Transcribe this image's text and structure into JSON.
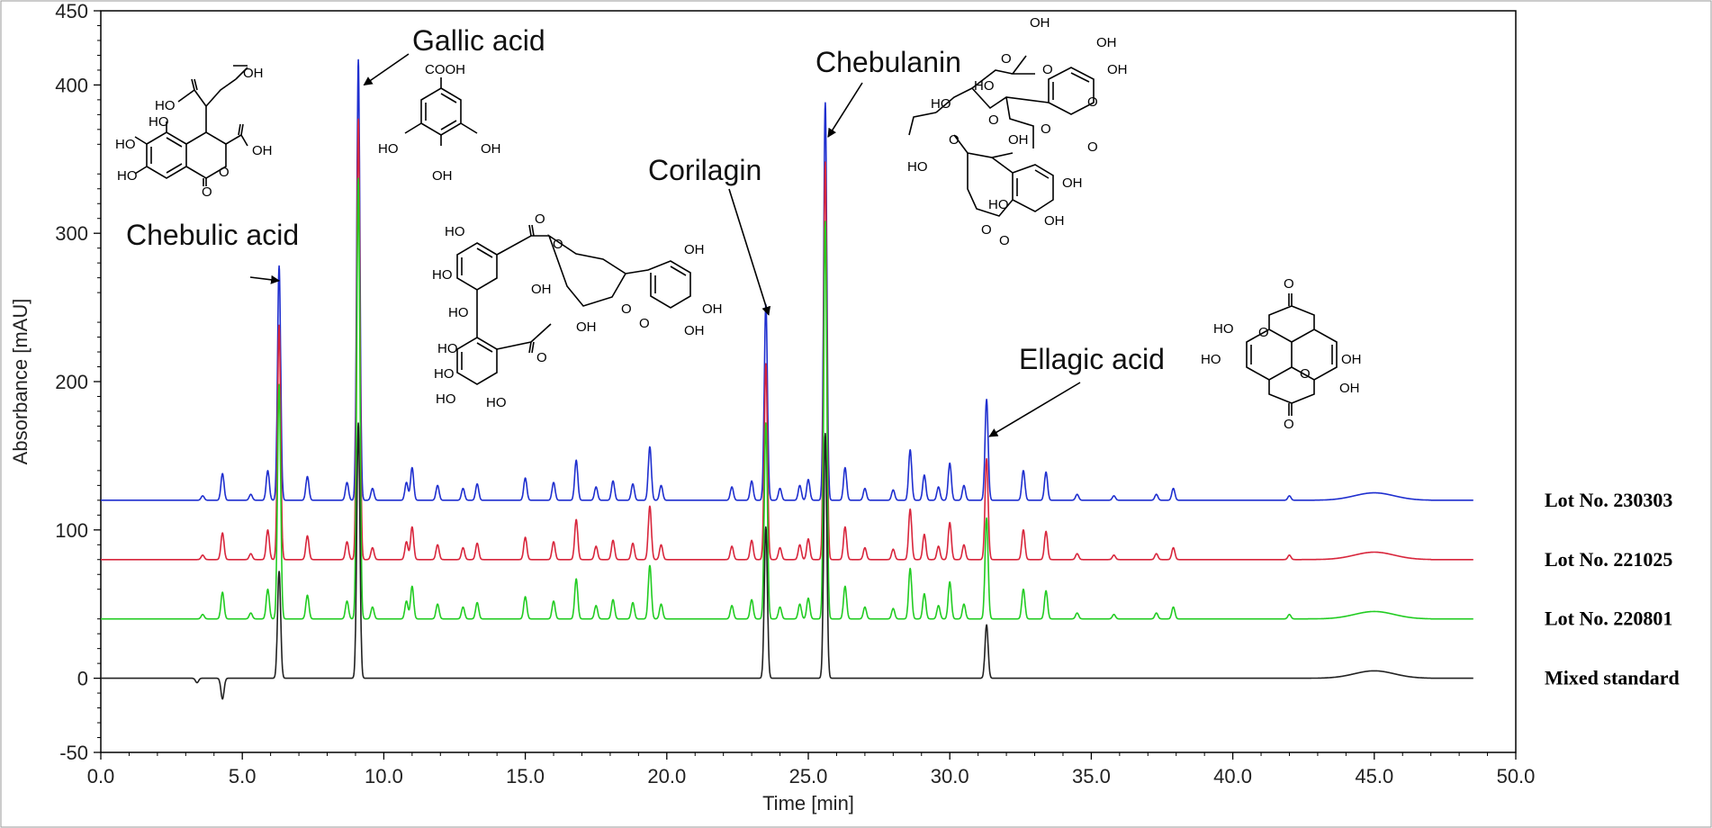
{
  "chart_data": {
    "type": "line",
    "xlabel": "Time [min]",
    "ylabel": "Absorbance [mAU]",
    "xlim": [
      0,
      50
    ],
    "ylim": [
      -50,
      450
    ],
    "x_ticks": [
      "0.0",
      "5.0",
      "10.0",
      "15.0",
      "20.0",
      "25.0",
      "30.0",
      "35.0",
      "40.0",
      "45.0",
      "50.0"
    ],
    "y_ticks": [
      "-50",
      "0",
      "100",
      "200",
      "300",
      "400",
      "450"
    ],
    "grid": false,
    "legend_placement": "right",
    "series": [
      {
        "name": "Lot No. 230303",
        "color": "#1f2fcf",
        "baseline": 120,
        "peaks": [
          [
            3.6,
            3
          ],
          [
            4.3,
            18
          ],
          [
            5.3,
            4
          ],
          [
            5.9,
            20
          ],
          [
            6.3,
            158
          ],
          [
            7.3,
            16
          ],
          [
            8.7,
            12
          ],
          [
            9.1,
            297
          ],
          [
            9.6,
            8
          ],
          [
            10.8,
            12
          ],
          [
            11.0,
            22
          ],
          [
            11.9,
            10
          ],
          [
            12.8,
            8
          ],
          [
            13.3,
            11
          ],
          [
            15.0,
            15
          ],
          [
            16.0,
            12
          ],
          [
            16.8,
            27
          ],
          [
            17.5,
            9
          ],
          [
            18.1,
            13
          ],
          [
            18.8,
            11
          ],
          [
            19.4,
            36
          ],
          [
            19.8,
            10
          ],
          [
            22.3,
            9
          ],
          [
            23.0,
            13
          ],
          [
            23.5,
            132
          ],
          [
            24.0,
            8
          ],
          [
            24.7,
            10
          ],
          [
            25.0,
            14
          ],
          [
            25.6,
            268
          ],
          [
            26.3,
            22
          ],
          [
            27.0,
            8
          ],
          [
            28.0,
            7
          ],
          [
            28.6,
            34
          ],
          [
            29.1,
            17
          ],
          [
            29.6,
            9
          ],
          [
            30.0,
            25
          ],
          [
            30.5,
            10
          ],
          [
            31.3,
            68
          ],
          [
            32.6,
            20
          ],
          [
            33.4,
            19
          ],
          [
            34.5,
            4
          ],
          [
            35.8,
            3
          ],
          [
            37.3,
            4
          ],
          [
            37.9,
            8
          ],
          [
            42.0,
            3
          ],
          [
            45.0,
            5
          ]
        ]
      },
      {
        "name": "Lot No. 221025",
        "color": "#d8263c",
        "baseline": 80,
        "peaks": [
          [
            3.6,
            3
          ],
          [
            4.3,
            18
          ],
          [
            5.3,
            4
          ],
          [
            5.9,
            20
          ],
          [
            6.3,
            158
          ],
          [
            7.3,
            16
          ],
          [
            8.7,
            12
          ],
          [
            9.1,
            297
          ],
          [
            9.6,
            8
          ],
          [
            10.8,
            12
          ],
          [
            11.0,
            22
          ],
          [
            11.9,
            10
          ],
          [
            12.8,
            8
          ],
          [
            13.3,
            11
          ],
          [
            15.0,
            15
          ],
          [
            16.0,
            12
          ],
          [
            16.8,
            27
          ],
          [
            17.5,
            9
          ],
          [
            18.1,
            13
          ],
          [
            18.8,
            11
          ],
          [
            19.4,
            36
          ],
          [
            19.8,
            10
          ],
          [
            22.3,
            9
          ],
          [
            23.0,
            13
          ],
          [
            23.5,
            132
          ],
          [
            24.0,
            8
          ],
          [
            24.7,
            10
          ],
          [
            25.0,
            14
          ],
          [
            25.6,
            268
          ],
          [
            26.3,
            22
          ],
          [
            27.0,
            8
          ],
          [
            28.0,
            7
          ],
          [
            28.6,
            34
          ],
          [
            29.1,
            17
          ],
          [
            29.6,
            9
          ],
          [
            30.0,
            25
          ],
          [
            30.5,
            10
          ],
          [
            31.3,
            68
          ],
          [
            32.6,
            20
          ],
          [
            33.4,
            19
          ],
          [
            34.5,
            4
          ],
          [
            35.8,
            3
          ],
          [
            37.3,
            4
          ],
          [
            37.9,
            8
          ],
          [
            42.0,
            3
          ],
          [
            45.0,
            5
          ]
        ]
      },
      {
        "name": "Lot No. 220801",
        "color": "#22cc22",
        "baseline": 40,
        "peaks": [
          [
            3.6,
            3
          ],
          [
            4.3,
            18
          ],
          [
            5.3,
            4
          ],
          [
            5.9,
            20
          ],
          [
            6.3,
            158
          ],
          [
            7.3,
            16
          ],
          [
            8.7,
            12
          ],
          [
            9.1,
            297
          ],
          [
            9.6,
            8
          ],
          [
            10.8,
            12
          ],
          [
            11.0,
            22
          ],
          [
            11.9,
            10
          ],
          [
            12.8,
            8
          ],
          [
            13.3,
            11
          ],
          [
            15.0,
            15
          ],
          [
            16.0,
            12
          ],
          [
            16.8,
            27
          ],
          [
            17.5,
            9
          ],
          [
            18.1,
            13
          ],
          [
            18.8,
            11
          ],
          [
            19.4,
            36
          ],
          [
            19.8,
            10
          ],
          [
            22.3,
            9
          ],
          [
            23.0,
            13
          ],
          [
            23.5,
            132
          ],
          [
            24.0,
            8
          ],
          [
            24.7,
            10
          ],
          [
            25.0,
            14
          ],
          [
            25.6,
            268
          ],
          [
            26.3,
            22
          ],
          [
            27.0,
            8
          ],
          [
            28.0,
            7
          ],
          [
            28.6,
            34
          ],
          [
            29.1,
            17
          ],
          [
            29.6,
            9
          ],
          [
            30.0,
            25
          ],
          [
            30.5,
            10
          ],
          [
            31.3,
            68
          ],
          [
            32.6,
            20
          ],
          [
            33.4,
            19
          ],
          [
            34.5,
            4
          ],
          [
            35.8,
            3
          ],
          [
            37.3,
            4
          ],
          [
            37.9,
            8
          ],
          [
            42.0,
            3
          ],
          [
            45.0,
            5
          ]
        ]
      },
      {
        "name": "Mixed standard",
        "color": "#222222",
        "baseline": 0,
        "peaks": [
          [
            3.4,
            -3
          ],
          [
            4.3,
            -14
          ],
          [
            6.3,
            72
          ],
          [
            9.1,
            172
          ],
          [
            23.5,
            102
          ],
          [
            25.6,
            165
          ],
          [
            31.3,
            36
          ],
          [
            45.0,
            5
          ]
        ]
      }
    ],
    "annotations": [
      {
        "text": "Chebulic acid",
        "target_x": 6.3,
        "target_y": 268
      },
      {
        "text": "Gallic acid",
        "target_x": 9.3,
        "target_y": 400
      },
      {
        "text": "Corilagin",
        "target_x": 23.6,
        "target_y": 245
      },
      {
        "text": "Chebulanin",
        "target_x": 25.7,
        "target_y": 365
      },
      {
        "text": "Ellagic acid",
        "target_x": 31.4,
        "target_y": 163
      }
    ]
  },
  "structures": {
    "chebulic_acid": [
      "HO",
      "OH",
      "HO",
      "OH",
      "HO",
      "HO",
      "O",
      "O"
    ],
    "gallic_acid": [
      "COOH",
      "HO",
      "OH",
      "OH"
    ],
    "corilagin": [
      "HO",
      "O",
      "HO",
      "O",
      "OH",
      "HO",
      "HO",
      "O",
      "OH",
      "HO",
      "O",
      "HO",
      "HO",
      "OH",
      "O",
      "OH",
      "OH"
    ],
    "chebulanin": [
      "OH",
      "OH",
      "HO",
      "O",
      "O",
      "OH",
      "HO",
      "O",
      "O",
      "O",
      "O",
      "O",
      "HO",
      "OH",
      "HO",
      "OH",
      "O",
      "OH",
      "O"
    ],
    "ellagic_acid": [
      "O",
      "HO",
      "O",
      "HO",
      "OH",
      "O",
      "OH",
      "O"
    ]
  }
}
